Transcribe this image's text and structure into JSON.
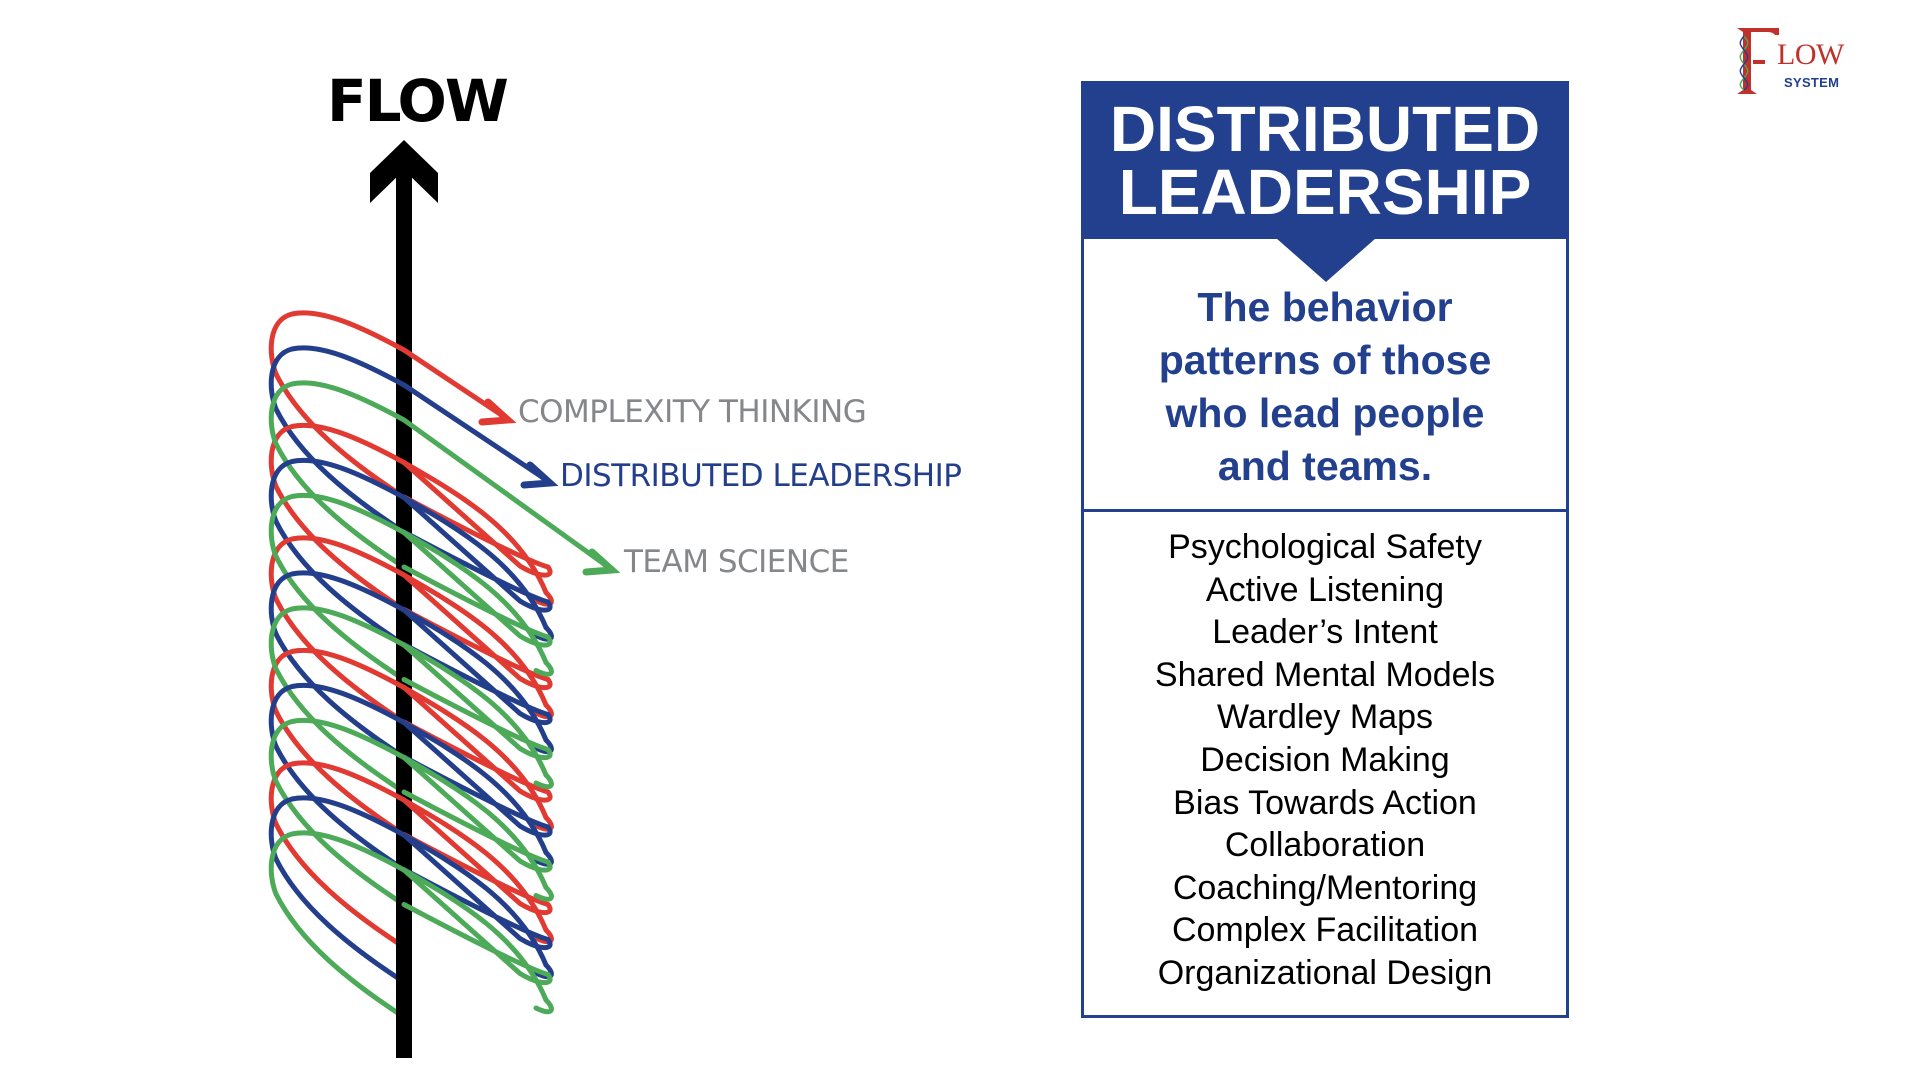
{
  "diagram": {
    "flow_axis": {
      "label": "FLOW",
      "direction": "up"
    },
    "helix_strands": [
      {
        "name": "Complexity Thinking",
        "label": "COMPLEXITY THINKING",
        "color": "#e03a32"
      },
      {
        "name": "Distributed Leadership",
        "label": "DISTRIBUTED LEADERSHIP",
        "color": "#233f8c"
      },
      {
        "name": "Team Science",
        "label": "TEAM SCIENCE",
        "color": "#4caa58"
      }
    ],
    "label_colors": {
      "muted": "#85878a",
      "highlight": "#233f8c"
    }
  },
  "card": {
    "title_line1": "DISTRIBUTED",
    "title_line2": "LEADERSHIP",
    "subtitle_lines": [
      "The behavior",
      "patterns of those",
      "who lead people",
      "and teams."
    ],
    "items": [
      "Psychological Safety",
      "Active Listening",
      "Leader’s Intent",
      "Shared Mental Models",
      "Wardley Maps",
      "Decision Making",
      "Bias Towards Action",
      "Collaboration",
      "Coaching/Mentoring",
      "Complex Facilitation",
      "Organizational Design"
    ],
    "accent_color": "#22408d"
  },
  "logo": {
    "letter_f": "F",
    "word": "LOW",
    "subword": "SYSTEM",
    "colors": {
      "primary": "#c0312c",
      "secondary": "#22408d"
    }
  }
}
